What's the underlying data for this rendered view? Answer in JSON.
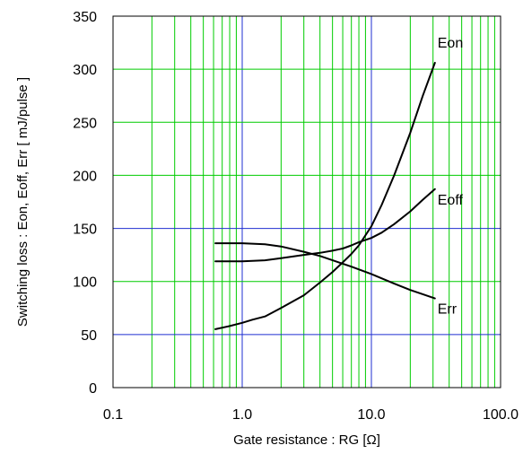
{
  "chart_data": {
    "type": "line",
    "xlabel": "Gate resistance : RG [Ω]",
    "ylabel": "Switching loss : Eon, Eoff, Err [ mJ/pulse ]",
    "x_scale": "log",
    "xlim": [
      0.1,
      100.0
    ],
    "ylim": [
      0,
      350
    ],
    "x_ticks": [
      0.1,
      1.0,
      10.0,
      100.0
    ],
    "x_tick_labels": [
      "0.1",
      "1.0",
      "10.0",
      "100.0"
    ],
    "y_ticks": [
      0,
      50,
      100,
      150,
      200,
      250,
      300,
      350
    ],
    "y_tick_labels": [
      "0",
      "50",
      "100",
      "150",
      "200",
      "250",
      "300",
      "350"
    ],
    "grid": true,
    "legend": "none",
    "colors": {
      "minor_grid": "#00cc00",
      "major_grid": "#1f2fd0",
      "line": "#000000"
    },
    "series": [
      {
        "name": "Eon",
        "x": [
          0.62,
          0.8,
          1.0,
          1.2,
          1.5,
          2.0,
          3.0,
          4.0,
          5.0,
          6.0,
          7.0,
          8.0,
          10.0,
          12.0,
          15.0,
          20.0,
          25.0,
          31.0
        ],
        "y": [
          55,
          58,
          61,
          64,
          67,
          75,
          87,
          99,
          109,
          118,
          126,
          134,
          152,
          172,
          200,
          240,
          275,
          306
        ]
      },
      {
        "name": "Eoff",
        "x": [
          0.62,
          1.0,
          1.5,
          2.0,
          3.0,
          4.0,
          5.0,
          6.0,
          7.0,
          8.0,
          10.0,
          12.0,
          15.0,
          20.0,
          25.0,
          31.0
        ],
        "y": [
          119,
          119,
          120,
          122,
          125,
          127,
          129,
          131,
          134,
          137,
          141,
          146,
          154,
          166,
          177,
          187
        ]
      },
      {
        "name": "Err",
        "x": [
          0.62,
          1.0,
          1.5,
          2.0,
          3.0,
          4.0,
          5.0,
          7.0,
          10.0,
          15.0,
          20.0,
          25.0,
          31.0
        ],
        "y": [
          136,
          136,
          135,
          133,
          128,
          124,
          120,
          114,
          107,
          98,
          92,
          88,
          84
        ]
      }
    ]
  }
}
